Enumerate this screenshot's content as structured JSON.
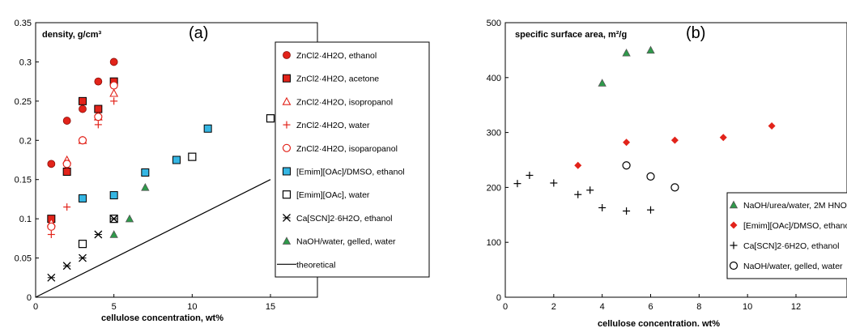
{
  "chart_data": [
    {
      "type": "scatter",
      "panel_label": "(a)",
      "title": "",
      "ylabel": "density, g/cm³",
      "xlabel": "cellulose concentration, wt%",
      "xlim": [
        0,
        18
      ],
      "ylim": [
        0,
        0.35
      ],
      "xticks": [
        "0",
        "5",
        "10",
        "15"
      ],
      "yticks": [
        "0",
        "0.05",
        "0.1",
        "0.15",
        "0.2",
        "0.25",
        "0.3",
        "0.35"
      ],
      "grid": false,
      "legend_position": "right",
      "series": [
        {
          "name": "ZnCl2·4H2O, ethanol",
          "marker": "circle-filled",
          "color": "#e2231a",
          "points": [
            [
              1,
              0.17
            ],
            [
              2,
              0.225
            ],
            [
              3,
              0.24
            ],
            [
              4,
              0.275
            ],
            [
              5,
              0.3
            ]
          ]
        },
        {
          "name": "ZnCl2·4H2O, acetone",
          "marker": "square-filled",
          "color": "#e2231a",
          "points": [
            [
              1,
              0.1
            ],
            [
              2,
              0.16
            ],
            [
              3,
              0.25
            ],
            [
              4,
              0.24
            ],
            [
              5,
              0.275
            ]
          ]
        },
        {
          "name": "ZnCl2·4H2O, isopropanol",
          "marker": "triangle-open",
          "color": "#e2231a",
          "points": [
            [
              1,
              0.095
            ],
            [
              2,
              0.175
            ],
            [
              3,
              0.2
            ],
            [
              4,
              0.23
            ],
            [
              5,
              0.26
            ]
          ]
        },
        {
          "name": "ZnCl2·4H2O, water",
          "marker": "plus",
          "color": "#e2231a",
          "points": [
            [
              1,
              0.08
            ],
            [
              2,
              0.115
            ],
            [
              3,
              0.2
            ],
            [
              4,
              0.22
            ],
            [
              5,
              0.25
            ]
          ]
        },
        {
          "name": "ZnCl2·4H2O, isoparopanol",
          "marker": "circle-open",
          "color": "#e2231a",
          "points": [
            [
              1,
              0.09
            ],
            [
              2,
              0.17
            ],
            [
              3,
              0.2
            ],
            [
              4,
              0.23
            ],
            [
              5,
              0.27
            ]
          ]
        },
        {
          "name": "[Emim][OAc]/DMSO, ethanol",
          "marker": "square-filled",
          "color": "#35b6e3",
          "points": [
            [
              3,
              0.126
            ],
            [
              5,
              0.13
            ],
            [
              7,
              0.159
            ],
            [
              9,
              0.175
            ],
            [
              11,
              0.215
            ]
          ]
        },
        {
          "name": "[Emim][OAc], water",
          "marker": "square-open",
          "color": "#000000",
          "points": [
            [
              3,
              0.068
            ],
            [
              5,
              0.1
            ],
            [
              10,
              0.179
            ],
            [
              15,
              0.228
            ]
          ]
        },
        {
          "name": "Ca[SCN]2·6H2O, ethanol",
          "marker": "asterisk",
          "color": "#000000",
          "points": [
            [
              1,
              0.025
            ],
            [
              2,
              0.04
            ],
            [
              3,
              0.05
            ],
            [
              4,
              0.08
            ],
            [
              5,
              0.1
            ]
          ]
        },
        {
          "name": "NaOH/water, gelled, water",
          "marker": "triangle-filled",
          "color": "#2e9a4a",
          "points": [
            [
              5,
              0.08
            ],
            [
              6,
              0.1
            ],
            [
              7,
              0.14
            ]
          ]
        },
        {
          "name": "theoretical",
          "marker": "line",
          "color": "#000000",
          "points": [
            [
              0,
              0
            ],
            [
              15,
              0.15
            ]
          ]
        }
      ]
    },
    {
      "type": "scatter",
      "panel_label": "(b)",
      "title": "",
      "ylabel": "specific surface area, m²/g",
      "xlabel": "cellulose concentration. wt%",
      "xlim": [
        0,
        12
      ],
      "ylim": [
        0,
        500
      ],
      "xticks": [
        "0",
        "2",
        "4",
        "6",
        "8",
        "10",
        "12"
      ],
      "yticks": [
        "0",
        "100",
        "200",
        "300",
        "400",
        "500"
      ],
      "grid": false,
      "legend_position": "right",
      "series": [
        {
          "name": "NaOH/urea/water, 2M HNO",
          "marker": "triangle-filled",
          "color": "#2e9a4a",
          "points": [
            [
              4,
              390
            ],
            [
              5,
              445
            ],
            [
              6,
              450
            ]
          ]
        },
        {
          "name": "[Emim][OAc]/DMSO, ethanol",
          "marker": "diamond-filled",
          "color": "#e2231a",
          "points": [
            [
              3,
              240
            ],
            [
              5,
              282
            ],
            [
              7,
              286
            ],
            [
              9,
              291
            ],
            [
              11,
              312
            ]
          ]
        },
        {
          "name": "Ca[SCN]2·6H2O, ethanol",
          "marker": "plus",
          "color": "#000000",
          "points": [
            [
              0.5,
              207
            ],
            [
              1,
              222
            ],
            [
              2,
              208
            ],
            [
              3,
              187
            ],
            [
              3.5,
              195
            ],
            [
              4,
              163
            ],
            [
              5,
              157
            ],
            [
              6,
              159
            ]
          ]
        },
        {
          "name": "NaOH/water, gelled, water",
          "marker": "circle-open",
          "color": "#000000",
          "points": [
            [
              5,
              240
            ],
            [
              6,
              220
            ],
            [
              7,
              200
            ]
          ]
        }
      ]
    }
  ]
}
